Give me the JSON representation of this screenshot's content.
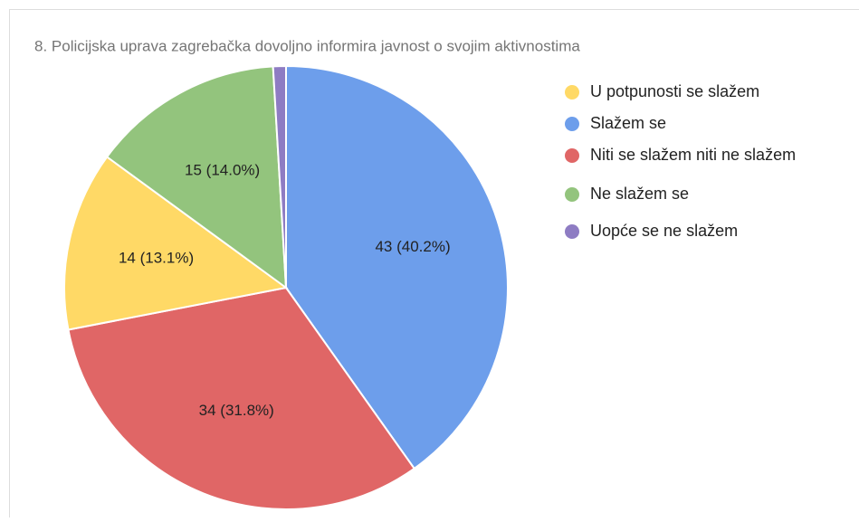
{
  "chart_data": {
    "type": "pie",
    "title": "8. Policijska uprava zagrebačka dovoljno informira javnost o svojim aktivnostima",
    "categories": [
      "Slažem se",
      "Niti se slažem niti ne slažem",
      "U potpunosti se slažem",
      "Ne slažem se",
      "Uopće se ne slažem"
    ],
    "values": [
      43,
      34,
      14,
      15,
      1
    ],
    "value_labels": [
      "43 (40.2%)",
      "34 (31.8%)",
      "14 (13.1%)",
      "15 (14.0%)",
      null
    ],
    "colors": [
      "#6d9eeb",
      "#e06666",
      "#ffd966",
      "#93c47d",
      "#8e7cc3"
    ],
    "legend": [
      "U potpunosti se slažem",
      "Slažem se",
      "Niti se slažem niti ne slažem",
      "Ne slažem se",
      "Uopće se ne slažem"
    ],
    "legend_position": "right"
  }
}
